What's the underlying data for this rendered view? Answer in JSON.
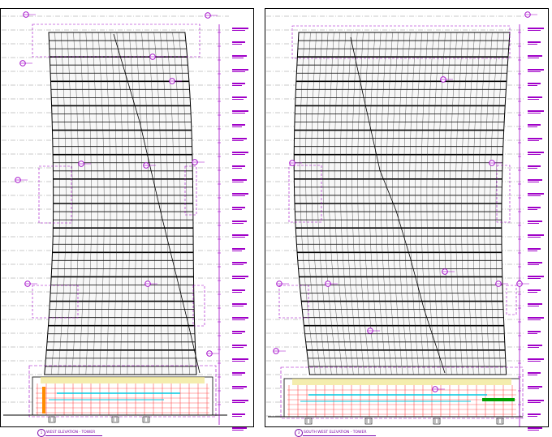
{
  "drawings": [
    {
      "id": "west",
      "caption_number": "1",
      "caption": "WEST ELEVATION - TOWER"
    },
    {
      "id": "southwest",
      "caption_number": "3",
      "caption": "SOUTH WEST ELEVATION - TOWER"
    }
  ],
  "colors": {
    "building_lines": "#000000",
    "annotation": "#a000c8",
    "sheet_border": "#000000",
    "podium_red": "#ff3030",
    "podium_cyan": "#00c8e0",
    "podium_green": "#00a000",
    "podium_yellow": "#f0e68c",
    "podium_orange": "#ff8c00"
  },
  "icons": [
    "section-marker-icon",
    "level-tag-icon"
  ]
}
